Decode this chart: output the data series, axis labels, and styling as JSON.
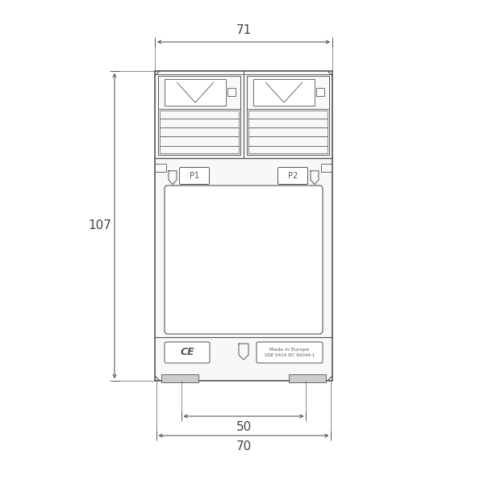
{
  "background_color": "#ffffff",
  "line_color": "#555555",
  "line_width": 0.7,
  "dim_line_color": "#444444",
  "fig_width": 6.0,
  "fig_height": 6.0,
  "dpi": 100,
  "label_71": "71",
  "label_107": "107",
  "label_50": "50",
  "label_70": "70",
  "label_P1": "P1",
  "label_P2": "P2",
  "label_CE": "€€",
  "label_made": "Made In Europe",
  "label_vde": "VDE 0414 IEC 60044-1"
}
